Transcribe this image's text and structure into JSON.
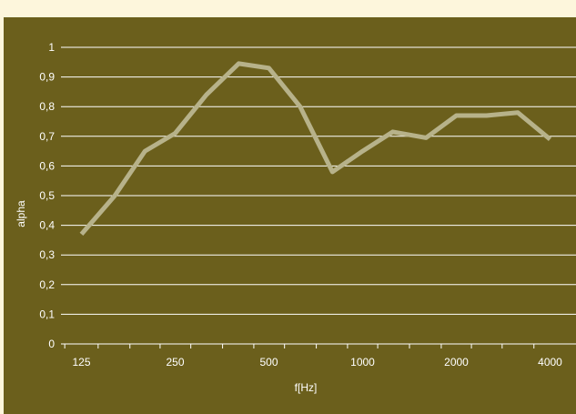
{
  "chart_data": {
    "type": "line",
    "title": "",
    "xlabel": "f[Hz]",
    "ylabel": "alpha",
    "x_scale": "log",
    "x": [
      125,
      160,
      200,
      250,
      315,
      400,
      500,
      630,
      800,
      1000,
      1250,
      1600,
      2000,
      2500,
      3150,
      4000
    ],
    "xtick_labels": [
      "125",
      "250",
      "500",
      "1000",
      "2000",
      "4000"
    ],
    "yticks": [
      "0",
      "0,1",
      "0,2",
      "0,3",
      "0,4",
      "0,5",
      "0,6",
      "0,7",
      "0,8",
      "0,9",
      "1"
    ],
    "ylim": [
      0,
      1
    ],
    "grid": "horizontal",
    "legend": "none",
    "series": [
      {
        "values": [
          0.37,
          0.5,
          0.65,
          0.71,
          0.84,
          0.945,
          0.93,
          0.8,
          0.58,
          0.65,
          0.715,
          0.695,
          0.77,
          0.77,
          0.78,
          0.69
        ],
        "color": "#b7b28a"
      }
    ],
    "colors": {
      "background": "#6b5f1c",
      "page": "#fdf6dc",
      "grid": "#ffffff",
      "text": "#ffffff"
    }
  }
}
